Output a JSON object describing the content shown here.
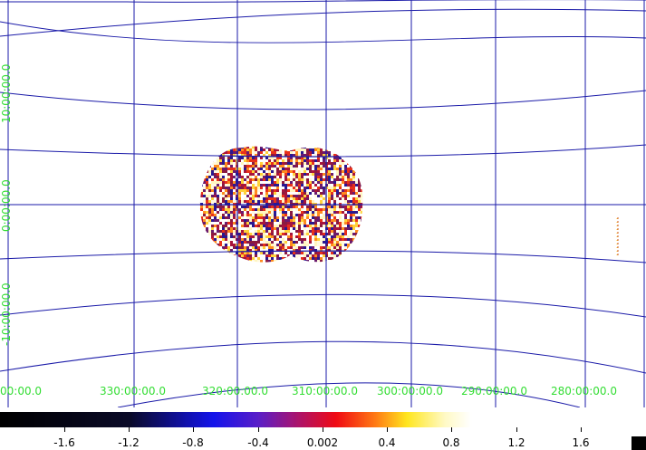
{
  "viewer": {
    "grid_color": "#1a1aa8",
    "label_color": "#33dd33",
    "ra_labels": [
      "00:00.0",
      "330:00:00.0",
      "320:00:00.0",
      "310:00:00.0",
      "300:00:00.0",
      "290:00:00.0",
      "280:00:00.0"
    ],
    "dec_labels": [
      "10:00:00.0",
      "0:00:00.0",
      "-10:00:00.0"
    ]
  },
  "colorbar": {
    "labels": [
      "-1.6",
      "-1.2",
      "-0.8",
      "-0.4",
      "0.002",
      "0.4",
      "0.8",
      "1.2",
      "1.6"
    ],
    "colormap": "heat"
  }
}
